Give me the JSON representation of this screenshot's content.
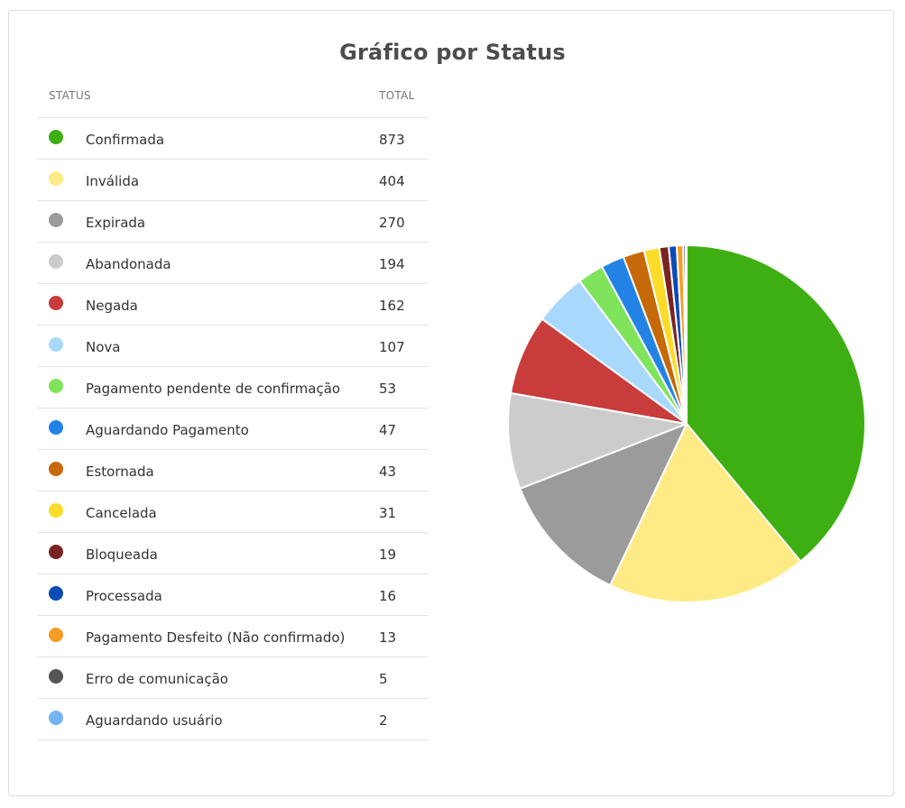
{
  "card": {
    "title": "Gráfico por Status"
  },
  "table": {
    "status_header": "STATUS",
    "total_header": "TOTAL"
  },
  "chart_data": {
    "type": "pie",
    "title": "Gráfico por Status",
    "legend_placement": "left",
    "categories": [
      "Confirmada",
      "Inválida",
      "Expirada",
      "Abandonada",
      "Negada",
      "Nova",
      "Pagamento pendente de confirmação",
      "Aguardando Pagamento",
      "Estornada",
      "Cancelada",
      "Bloqueada",
      "Processada",
      "Pagamento Desfeito (Não confirmado)",
      "Erro de comunicação",
      "Aguardando usuário"
    ],
    "values": [
      873,
      404,
      270,
      194,
      162,
      107,
      53,
      47,
      43,
      31,
      19,
      16,
      13,
      5,
      2
    ],
    "colors": [
      "#3eaf12",
      "#ffeb85",
      "#9b9b9b",
      "#cccccc",
      "#c93c3c",
      "#a8d8fb",
      "#80e35c",
      "#2283e5",
      "#c66909",
      "#fcdc2a",
      "#7a2323",
      "#0b4bb5",
      "#f79d25",
      "#555555",
      "#74b4f2"
    ]
  }
}
